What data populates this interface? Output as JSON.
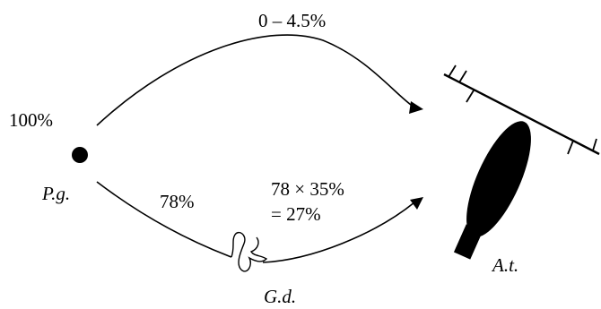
{
  "top_percent": "0 – 4.5%",
  "start_percent": "100%",
  "start_label": "P.g.",
  "lower_left_percent": "78%",
  "lower_right_line1": "78 × 35%",
  "lower_right_line2": "= 27%",
  "middle_label": "G.d.",
  "end_label": "A.t.",
  "colors": {
    "ink": "#000000",
    "background": "#ffffff"
  }
}
